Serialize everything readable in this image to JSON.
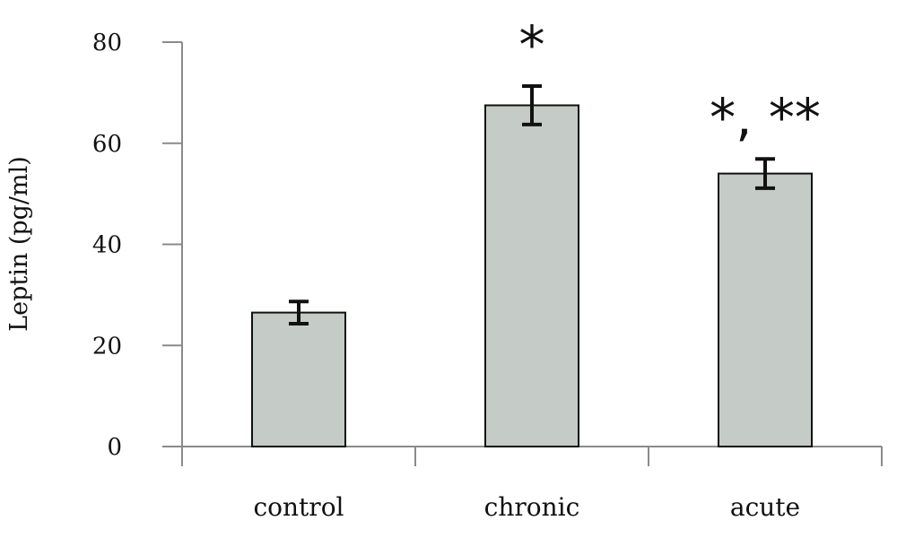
{
  "chart_data": {
    "type": "bar",
    "categories": [
      "control",
      "chronic",
      "acute"
    ],
    "values": [
      26.5,
      67.5,
      54
    ],
    "error": [
      2.2,
      3.8,
      2.9
    ],
    "annotations": [
      "",
      "*",
      "*, **"
    ],
    "title": "",
    "xlabel": "",
    "ylabel": "Leptin (pg/ml)",
    "ylim": [
      0,
      80
    ],
    "yticks": [
      0,
      20,
      40,
      60,
      80
    ],
    "grid": false,
    "colors": {
      "bar": "#c5cbc6",
      "bar_edge": "#111111",
      "axis": "#8a8a8a",
      "errorbar": "#111111"
    }
  }
}
